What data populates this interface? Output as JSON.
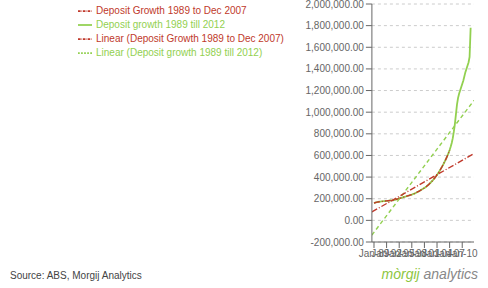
{
  "chart_data": {
    "type": "line",
    "xlim": [
      1988.5,
      2012.8
    ],
    "xticks": [
      {
        "value": 1989,
        "label": "Jan-89"
      },
      {
        "value": 1992,
        "label": "Jan-92"
      },
      {
        "value": 1995,
        "label": "Jan-95"
      },
      {
        "value": 1998,
        "label": "Jan-98"
      },
      {
        "value": 2001,
        "label": "Jan-01"
      },
      {
        "value": 2004,
        "label": "Jan-04"
      },
      {
        "value": 2007,
        "label": "Jan-07"
      },
      {
        "value": 2010,
        "label": "Jan-10"
      }
    ],
    "ylim": [
      -200000,
      2000000
    ],
    "yticks": [
      {
        "value": -200000,
        "label": "-200,000.00"
      },
      {
        "value": 0,
        "label": "0.00"
      },
      {
        "value": 200000,
        "label": "200,000.00"
      },
      {
        "value": 400000,
        "label": "400,000.00"
      },
      {
        "value": 600000,
        "label": "600,000.00"
      },
      {
        "value": 800000,
        "label": "800,000.00"
      },
      {
        "value": 1000000,
        "label": "1,000,000.00"
      },
      {
        "value": 1200000,
        "label": "1,200,000.00"
      },
      {
        "value": 1400000,
        "label": "1,400,000.00"
      },
      {
        "value": 1600000,
        "label": "1,600,000.00"
      },
      {
        "value": 1800000,
        "label": "1,800,000.00"
      },
      {
        "value": 2000000,
        "label": "2,000,000.00"
      }
    ],
    "grid": true,
    "legend": "top",
    "annotations": [
      {
        "text": "Source: ABS, Morgij Analytics",
        "color": "#444444"
      },
      {
        "text": "mòrgij",
        "color": "#8dc63f"
      },
      {
        "text": "analytics",
        "color": "#888888"
      }
    ],
    "series": [
      {
        "name": "Deposit growth 1989 till 2012",
        "color": "#92d050",
        "line_style": "solid",
        "x": [
          1989.0,
          1989.25,
          1989.5,
          1989.75,
          1990.0,
          1990.25,
          1990.5,
          1990.75,
          1991.0,
          1991.25,
          1991.5,
          1991.75,
          1992.0,
          1992.25,
          1992.5,
          1992.75,
          1993.0,
          1993.25,
          1993.5,
          1993.75,
          1994.0,
          1994.25,
          1994.5,
          1994.75,
          1995.0,
          1995.25,
          1995.5,
          1995.75,
          1996.0,
          1996.25,
          1996.5,
          1996.75,
          1997.0,
          1997.25,
          1997.5,
          1997.75,
          1998.0,
          1998.25,
          1998.5,
          1998.75,
          1999.0,
          1999.25,
          1999.5,
          1999.75,
          2000.0,
          2000.25,
          2000.5,
          2000.75,
          2001.0,
          2001.25,
          2001.5,
          2001.75,
          2002.0,
          2002.25,
          2002.5,
          2002.75,
          2003.0,
          2003.25,
          2003.5,
          2003.75,
          2004.0,
          2004.25,
          2004.5,
          2004.75,
          2005.0,
          2005.25,
          2005.5,
          2005.75,
          2006.0,
          2006.25,
          2006.5,
          2006.75,
          2007.0,
          2007.25,
          2007.5,
          2007.75,
          2008.0,
          2008.25,
          2008.5,
          2008.75,
          2009.0,
          2009.25,
          2009.5,
          2009.75,
          2010.0,
          2010.25,
          2010.5,
          2010.75,
          2011.0,
          2011.25,
          2011.5,
          2011.75,
          2012.0
        ],
        "values": [
          160000,
          163000,
          166000,
          168000,
          170000,
          172000,
          174000,
          175000,
          176000,
          177000,
          178000,
          179000,
          180000,
          181000,
          182000,
          183000,
          184000,
          185000,
          186000,
          188000,
          190000,
          193000,
          196000,
          199000,
          202000,
          205000,
          208000,
          211000,
          214000,
          217000,
          220000,
          223000,
          226000,
          229000,
          232000,
          235000,
          238000,
          242000,
          246000,
          250000,
          255000,
          260000,
          265000,
          270000,
          276000,
          282000,
          288000,
          294000,
          300000,
          307000,
          314000,
          322000,
          330000,
          340000,
          350000,
          360000,
          370000,
          382000,
          394000,
          407000,
          420000,
          435000,
          450000,
          466000,
          483000,
          500000,
          518000,
          537000,
          557000,
          578000,
          600000,
          624000,
          650000,
          680000,
          715000,
          760000,
          820000,
          890000,
          980000,
          1070000,
          1130000,
          1170000,
          1200000,
          1230000,
          1260000,
          1290000,
          1330000,
          1370000,
          1400000,
          1430000,
          1460000,
          1510000,
          1780000
        ]
      },
      {
        "name": "Deposit Growth 1989 to Dec 2007",
        "color": "#c0392b",
        "line_style": "dashdot",
        "x": [
          1989.0,
          1989.25,
          1989.5,
          1989.75,
          1990.0,
          1990.25,
          1990.5,
          1990.75,
          1991.0,
          1991.25,
          1991.5,
          1991.75,
          1992.0,
          1992.25,
          1992.5,
          1992.75,
          1993.0,
          1993.25,
          1993.5,
          1993.75,
          1994.0,
          1994.25,
          1994.5,
          1994.75,
          1995.0,
          1995.25,
          1995.5,
          1995.75,
          1996.0,
          1996.25,
          1996.5,
          1996.75,
          1997.0,
          1997.25,
          1997.5,
          1997.75,
          1998.0,
          1998.25,
          1998.5,
          1998.75,
          1999.0,
          1999.25,
          1999.5,
          1999.75,
          2000.0,
          2000.25,
          2000.5,
          2000.75,
          2001.0,
          2001.25,
          2001.5,
          2001.75,
          2002.0,
          2002.25,
          2002.5,
          2002.75,
          2003.0,
          2003.25,
          2003.5,
          2003.75,
          2004.0,
          2004.25,
          2004.5,
          2004.75,
          2005.0,
          2005.25,
          2005.5,
          2005.75,
          2006.0,
          2006.25,
          2006.5,
          2006.75,
          2007.0
        ],
        "values": [
          160000,
          163000,
          166000,
          168000,
          170000,
          172000,
          174000,
          175000,
          176000,
          177000,
          178000,
          179000,
          180000,
          181000,
          182000,
          183000,
          184000,
          185000,
          186000,
          188000,
          190000,
          193000,
          196000,
          199000,
          202000,
          205000,
          208000,
          211000,
          214000,
          217000,
          220000,
          223000,
          226000,
          229000,
          232000,
          235000,
          238000,
          242000,
          246000,
          250000,
          255000,
          260000,
          265000,
          270000,
          276000,
          282000,
          288000,
          294000,
          300000,
          307000,
          314000,
          322000,
          330000,
          340000,
          350000,
          360000,
          370000,
          382000,
          394000,
          407000,
          420000,
          435000,
          450000,
          466000,
          483000,
          500000,
          518000,
          537000,
          557000,
          578000,
          600000,
          624000,
          650000
        ]
      },
      {
        "name": "Linear (Deposit growth 1989 till 2012)",
        "color": "#92d050",
        "line_style": "dashed",
        "x": [
          1988.5,
          2012.8
        ],
        "values": [
          -135702.4,
          1109396.5
        ]
      },
      {
        "name": "Linear (Deposit Growth 1989 to Dec 2007)",
        "color": "#c0392b",
        "line_style": "dashdot",
        "x": [
          1988.5,
          2012.8
        ],
        "values": [
          77690.5,
          617847.5
        ]
      }
    ]
  }
}
